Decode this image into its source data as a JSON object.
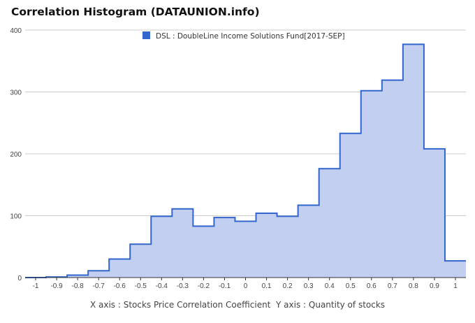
{
  "title": "Correlation Histogram (DATAUNION.info)",
  "axis_caption": {
    "x": "X axis : Stocks Price Correlation Coefficient",
    "y": "Y axis : Quantity of stocks"
  },
  "colors": {
    "line": "#3366cc",
    "fill": "#c2cff0",
    "grid": "#cccccc",
    "axis": "#333333",
    "tick_text": "#444444"
  },
  "chart_data": {
    "type": "area",
    "step": "centered",
    "title": "Correlation Histogram (DATAUNION.info)",
    "xlabel": "X axis : Stocks Price Correlation Coefficient",
    "ylabel": "Y axis : Quantity of stocks",
    "xlim": [
      -1.05,
      1.05
    ],
    "ylim": [
      0,
      400
    ],
    "xticks": [
      "-1",
      "-0.9",
      "-0.8",
      "-0.7",
      "-0.6",
      "-0.5",
      "-0.4",
      "-0.3",
      "-0.2",
      "-0.1",
      "0",
      "0.1",
      "0.2",
      "0.3",
      "0.4",
      "0.5",
      "0.6",
      "0.7",
      "0.8",
      "0.9",
      "1"
    ],
    "yticks": [
      0,
      100,
      200,
      300,
      400
    ],
    "grid": true,
    "legend": "top-center",
    "series": [
      {
        "name": "DSL : DoubleLine Income Solutions Fund[2017-SEP]",
        "x": [
          -1,
          -0.9,
          -0.8,
          -0.7,
          -0.6,
          -0.5,
          -0.4,
          -0.3,
          -0.2,
          -0.1,
          0,
          0.1,
          0.2,
          0.3,
          0.4,
          0.5,
          0.6,
          0.7,
          0.8,
          0.9,
          1
        ],
        "values": [
          0,
          1,
          4,
          11,
          30,
          54,
          99,
          111,
          83,
          97,
          91,
          104,
          99,
          117,
          176,
          233,
          302,
          319,
          377,
          208,
          27
        ]
      }
    ]
  }
}
